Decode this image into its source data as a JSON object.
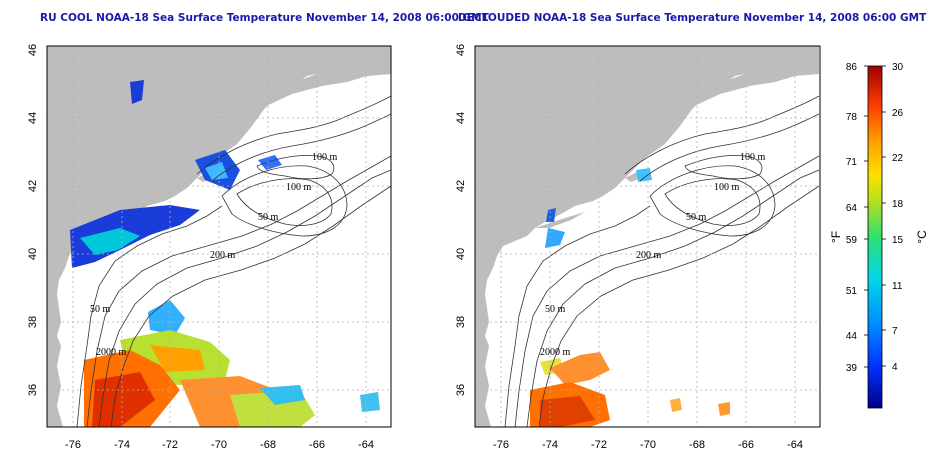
{
  "panels": [
    {
      "id": "left",
      "title": "RU COOL NOAA-18 Sea Surface Temperature November 14, 2008 06:00 GMT"
    },
    {
      "id": "right",
      "title": "DECLOUDED NOAA-18 Sea Surface Temperature November 14, 2008 06:00 GMT"
    }
  ],
  "axes": {
    "lon_ticks": [
      "-76",
      "-74",
      "-72",
      "-70",
      "-68",
      "-66",
      "-64"
    ],
    "lat_ticks": [
      "46",
      "44",
      "42",
      "40",
      "38",
      "36"
    ]
  },
  "contour_labels": [
    "100 m",
    "100 m",
    "50 m",
    "200 m",
    "50 m",
    "2000 m"
  ],
  "colorbar": {
    "fahrenheit_ticks": [
      "86",
      "78",
      "71",
      "64",
      "59",
      "51",
      "44",
      "39"
    ],
    "celsius_ticks": [
      "30",
      "26",
      "22",
      "18",
      "15",
      "11",
      "7",
      "4"
    ],
    "fahrenheit_unit": "°F",
    "celsius_unit": "°C"
  },
  "colors": {
    "title": "#1a1aa8",
    "land": "#bdbdbd",
    "ocean": "#ffffff",
    "grid": "#b0b0b0",
    "contour": "#333333"
  }
}
